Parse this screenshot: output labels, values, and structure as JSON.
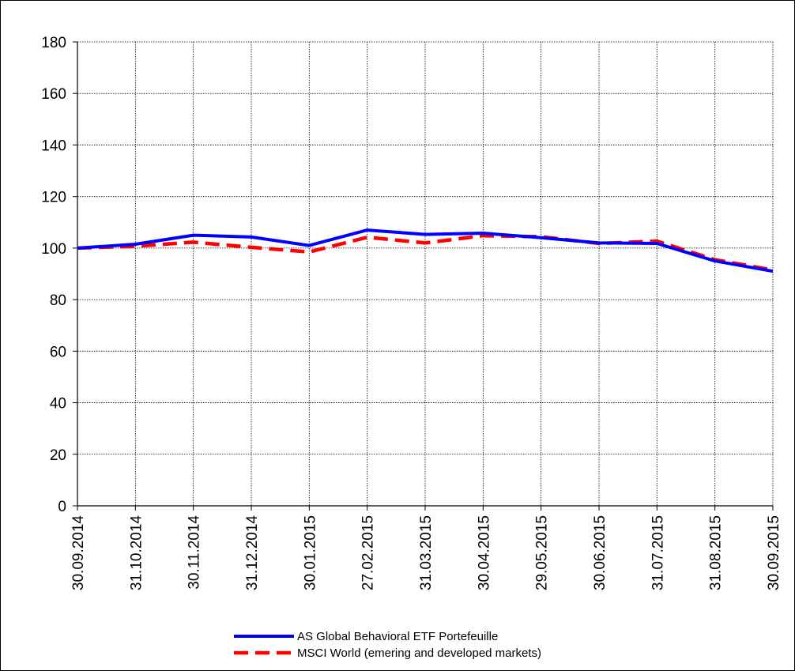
{
  "chart_data": {
    "type": "line",
    "title": "",
    "xlabel": "",
    "ylabel": "",
    "categories": [
      "30.09.2014",
      "31.10.2014",
      "30.11.2014",
      "31.12.2014",
      "30.01.2015",
      "27.02.2015",
      "31.03.2015",
      "30.04.2015",
      "29.05.2015",
      "30.06.2015",
      "31.07.2015",
      "31.08.2015",
      "30.09.2015"
    ],
    "ylim": [
      0,
      180
    ],
    "yticks": [
      0,
      20,
      40,
      60,
      80,
      100,
      120,
      140,
      160,
      180
    ],
    "grid": true,
    "legend_position": "bottom",
    "series": [
      {
        "name": "AS Global Behavioral ETF Portefeuille",
        "color": "#0000ff",
        "style": "solid",
        "values": [
          100,
          101.5,
          105,
          104.3,
          101,
          107,
          105.3,
          105.8,
          104,
          102,
          101.8,
          95,
          91
        ]
      },
      {
        "name": "MSCI World (emering and developed markets)",
        "color": "#ff0000",
        "style": "dashed",
        "values": [
          100,
          100.7,
          102.3,
          100.3,
          98.5,
          104.2,
          102,
          104.8,
          104.4,
          101.8,
          102.7,
          95.5,
          91.5
        ]
      }
    ]
  }
}
